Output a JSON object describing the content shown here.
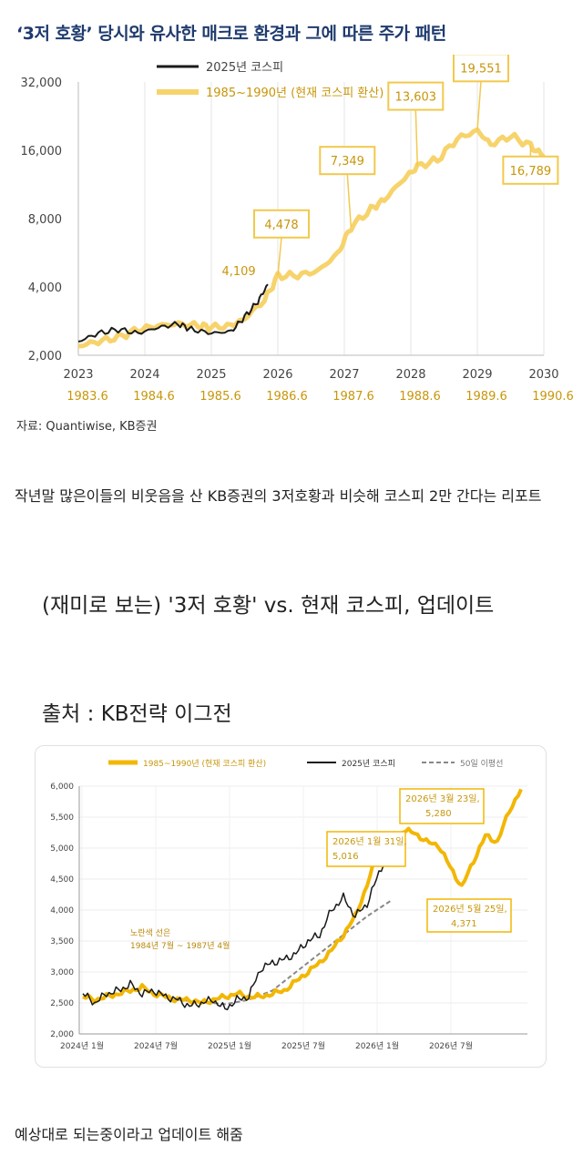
{
  "chart1": {
    "title": "‘3저 호황’ 당시와 유사한 매크로 환경과 그에 따른 주가 패턴",
    "legend": [
      "2025년 코스피",
      "1985~1990년 (현재 코스피 환산)"
    ],
    "source": "자료: Quantiwise, KB증권",
    "y_ticks": [
      "32,000",
      "16,000",
      "8,000",
      "4,000",
      "2,000"
    ],
    "x_ticks_top": [
      "2023",
      "2024",
      "2025",
      "2026",
      "2027",
      "2028",
      "2029",
      "2030"
    ],
    "x_ticks_bottom": [
      "1983.6",
      "1984.6",
      "1985.6",
      "1986.6",
      "1987.6",
      "1988.6",
      "1989.6",
      "1990.6"
    ],
    "annotations": [
      "4,109",
      "4,478",
      "7,349",
      "13,603",
      "19,551",
      "16,789"
    ],
    "colors": {
      "kospi": "#1a1a1a",
      "hist": "#f7d36c",
      "title": "#1f3b6e",
      "label": "#c8960a",
      "axis": "#555555"
    }
  },
  "chart_data": [
    {
      "type": "line",
      "title": "‘3저 호황’ 당시와 유사한 매크로 환경과 그에 따른 주가 패턴",
      "y_scale": "log2",
      "ylim": [
        2000,
        32000
      ],
      "xlim": [
        2023,
        2030
      ],
      "series": [
        {
          "name": "2025년 코스피",
          "x": [
            2023.0,
            2023.3,
            2023.6,
            2023.9,
            2024.2,
            2024.5,
            2024.7,
            2025.0,
            2025.3,
            2025.5,
            2025.7,
            2025.85
          ],
          "y": [
            2300,
            2500,
            2600,
            2500,
            2650,
            2750,
            2600,
            2500,
            2550,
            2950,
            3450,
            4109
          ]
        },
        {
          "name": "1985~1990년 (현재 코스피 환산)",
          "x": [
            2023.0,
            2023.3,
            2023.6,
            2023.9,
            2024.2,
            2024.5,
            2024.8,
            2025.0,
            2025.3,
            2025.5,
            2025.8,
            2026.0,
            2026.3,
            2026.6,
            2026.9,
            2027.1,
            2027.4,
            2027.6,
            2027.9,
            2028.1,
            2028.4,
            2028.7,
            2029.0,
            2029.2,
            2029.5,
            2029.8,
            2030.0
          ],
          "y": [
            2200,
            2300,
            2400,
            2600,
            2700,
            2750,
            2700,
            2650,
            2700,
            2900,
            3500,
            4478,
            4500,
            4700,
            5600,
            7349,
            8800,
            9700,
            12000,
            13603,
            14500,
            18000,
            19551,
            17000,
            18500,
            16789,
            15000
          ]
        }
      ],
      "annotations": [
        {
          "x": 2025.85,
          "y": 4109,
          "text": "4,109"
        },
        {
          "x": 2026.0,
          "y": 4478,
          "text": "4,478"
        },
        {
          "x": 2027.1,
          "y": 7349,
          "text": "7,349"
        },
        {
          "x": 2028.1,
          "y": 13603,
          "text": "13,603"
        },
        {
          "x": 2029.0,
          "y": 19551,
          "text": "19,551"
        },
        {
          "x": 2029.8,
          "y": 16789,
          "text": "16,789"
        }
      ]
    },
    {
      "type": "line",
      "ylim": [
        2000,
        6000
      ],
      "x_ticks": [
        "2024년 1월",
        "2024년 7월",
        "2025년 1월",
        "2025년 7월",
        "2026년 1월",
        "2026년 7월"
      ],
      "series": [
        {
          "name": "1985~1990년 (현재 코스피 환산)",
          "x": [
            0,
            1,
            2,
            3,
            4,
            5,
            6,
            7,
            8,
            9,
            10,
            11,
            12,
            13,
            14,
            15,
            16,
            17,
            18,
            19,
            20,
            21,
            22,
            23,
            24,
            25,
            26,
            27,
            28,
            29,
            30,
            31,
            32,
            33,
            34,
            35,
            36,
            37
          ],
          "y": [
            2600,
            2550,
            2600,
            2650,
            2700,
            2750,
            2650,
            2600,
            2550,
            2550,
            2500,
            2550,
            2600,
            2650,
            2600,
            2600,
            2650,
            2700,
            2850,
            3000,
            3150,
            3350,
            3600,
            3900,
            4400,
            5000,
            5016,
            5280,
            5250,
            5100,
            5050,
            4700,
            4371,
            4800,
            5200,
            5100,
            5600,
            5950
          ]
        },
        {
          "name": "2025년 코스피",
          "x": [
            0,
            1,
            2,
            3,
            4,
            5,
            6,
            7,
            8,
            9,
            10,
            11,
            12,
            13,
            14,
            15,
            16,
            17,
            18,
            19,
            20,
            21,
            22,
            23,
            24,
            25,
            26
          ],
          "y": [
            2650,
            2500,
            2650,
            2700,
            2800,
            2650,
            2700,
            2600,
            2550,
            2450,
            2500,
            2550,
            2400,
            2550,
            2600,
            3050,
            3150,
            3200,
            3300,
            3500,
            3600,
            4000,
            4200,
            3900,
            4100,
            4600,
            5016
          ]
        },
        {
          "name": "50일 이평선",
          "x": [
            8,
            10,
            12,
            14,
            16,
            18,
            20,
            22,
            24,
            26
          ],
          "y": [
            2550,
            2520,
            2480,
            2550,
            2700,
            3000,
            3300,
            3600,
            3900,
            4150
          ]
        }
      ],
      "annotations": [
        {
          "text": "2026년 1월 31일, 5,016"
        },
        {
          "text": "2026년 3월 23일, 5,280"
        },
        {
          "text": "2026년 5월 25일, 4,371"
        },
        {
          "text": "노란색 선은 1984년 7월 ~ 1987년 4월"
        }
      ]
    }
  ],
  "chart2": {
    "legend": [
      "1985~1990년 (현재 코스피 환산)",
      "2025년 코스피",
      "50일 이평선"
    ],
    "y_ticks": [
      "6,000",
      "5,500",
      "5,000",
      "4,500",
      "4,000",
      "3,500",
      "3,000",
      "2,500",
      "2,000"
    ],
    "x_ticks": [
      "2024년 1월",
      "2024년 7월",
      "2025년 1월",
      "2025년 7월",
      "2026년 1월",
      "2026년 7월"
    ],
    "box1": [
      "2026년 1월 31일,",
      "5,016"
    ],
    "box2": [
      "2026년 3월 23일,",
      "5,280"
    ],
    "box3": [
      "2026년 5월 25일,",
      "4,371"
    ],
    "note": [
      "노란색 선은",
      "1984년 7월 ~ 1987년 4월"
    ],
    "colors": {
      "hist": "#f2b705",
      "kospi": "#1a1a1a",
      "ma": "#888888",
      "box_text": "#c8960a"
    }
  },
  "caption1": "작년말 많은이들의 비웃음을 산 KB증권의 3저호황과 비슷해 코스피 2만 간다는 리포트",
  "heading2": "(재미로 보는) '3저 호황' vs. 현재 코스피, 업데이트",
  "heading3": "출처 :  KB전략 이그전",
  "caption2": "예상대로 되는중이라고 업데이트 해줌"
}
